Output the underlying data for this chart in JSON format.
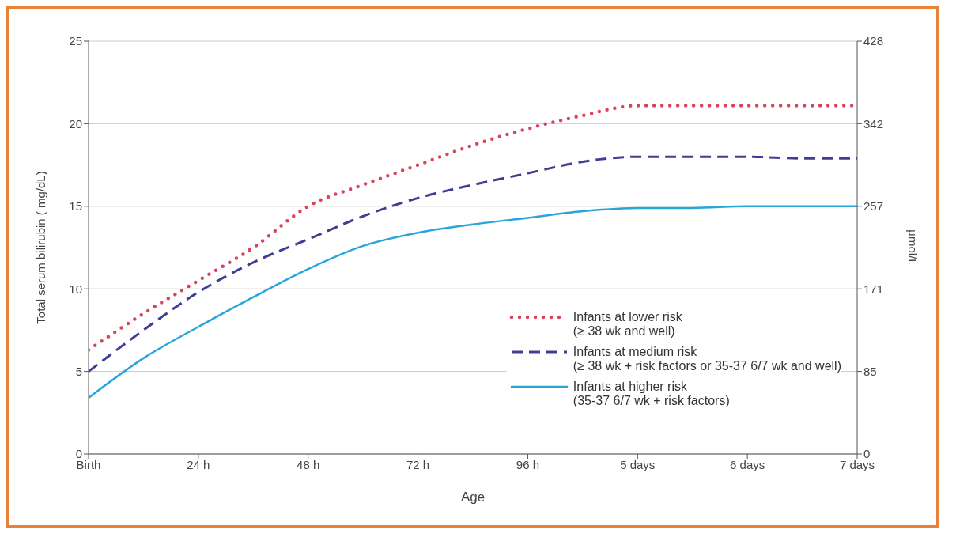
{
  "chart_data": {
    "type": "line",
    "xlabel": "Age",
    "ylabel": "Total serum bilirubin ( mg/dL)",
    "y2label": "µmol/L",
    "categories": [
      "Birth",
      null,
      "24 h",
      null,
      "48 h",
      null,
      "72 h",
      null,
      "96 h",
      null,
      "5 days",
      null,
      "6 days",
      null,
      "7 days"
    ],
    "ylim": [
      0,
      25
    ],
    "yticks": [
      0,
      5,
      10,
      15,
      20,
      25
    ],
    "y2lim": [
      0,
      427.5
    ],
    "y2ticks": [
      0,
      {
        "value": 85.5,
        "label": "85"
      },
      171,
      {
        "value": 256.5,
        "label": "257"
      },
      342,
      {
        "value": 427.5,
        "label": "428"
      }
    ],
    "grid": "y",
    "legend": "bottom right",
    "series": [
      {
        "name": "Infants at lower risk\n(≥ 38 wk and well)",
        "color": "#d9435b",
        "line_style": "dotted",
        "values": [
          6.3,
          8.5,
          10.5,
          12.5,
          15.0,
          16.3,
          17.5,
          18.7,
          19.7,
          20.5,
          21.1,
          21.1,
          21.1,
          21.1,
          21.1
        ]
      },
      {
        "name": "Infants at medium risk\n(≥ 38 wk + risk factors or 35-37 6/7 wk and well)",
        "color": "#3d3f96",
        "line_style": "dashed",
        "values": [
          5.0,
          7.5,
          9.8,
          11.6,
          13.0,
          14.4,
          15.5,
          16.3,
          17.0,
          17.7,
          18.0,
          18.0,
          18.0,
          17.9,
          17.9
        ]
      },
      {
        "name": "Infants at higher risk\n(35-37 6/7 wk + risk factors)",
        "color": "#2aa5dc",
        "line_style": "solid",
        "values": [
          3.4,
          5.8,
          7.7,
          9.5,
          11.2,
          12.6,
          13.4,
          13.9,
          14.3,
          14.7,
          14.9,
          14.9,
          15.0,
          15.0,
          15.0
        ]
      }
    ]
  }
}
